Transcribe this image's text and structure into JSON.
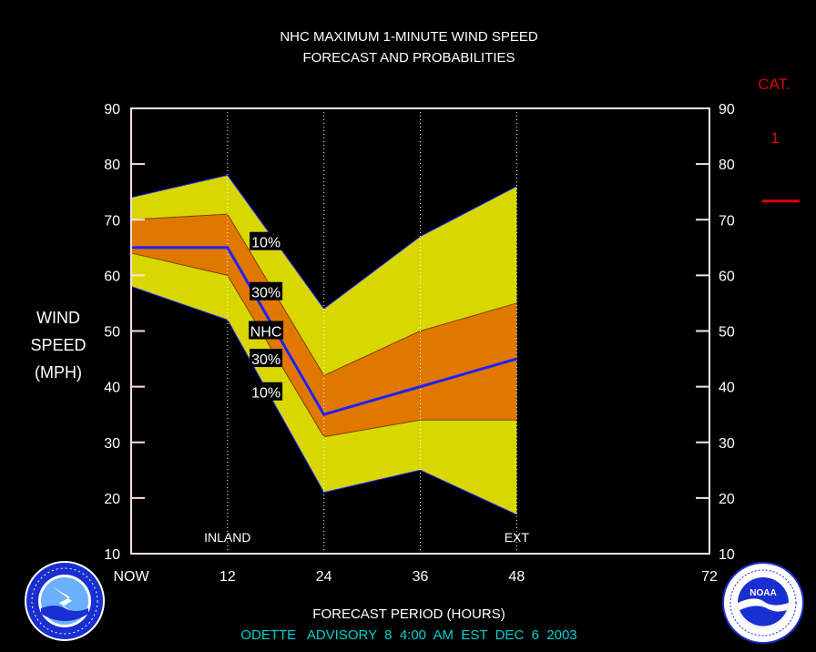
{
  "chart_data": {
    "type": "area",
    "title": "NHC MAXIMUM 1-MINUTE WIND SPEED",
    "subtitle": "FORECAST AND PROBABILITIES",
    "xlabel": "FORECAST PERIOD (HOURS)",
    "ylabel": [
      "WIND",
      "SPEED",
      "(MPH)"
    ],
    "xlim": [
      0,
      72
    ],
    "ylim": [
      10,
      90
    ],
    "yticks": [
      10,
      20,
      30,
      40,
      50,
      60,
      70,
      80,
      90
    ],
    "xticks": [
      {
        "x": 0,
        "label": "NOW"
      },
      {
        "x": 12,
        "label": "12"
      },
      {
        "x": 24,
        "label": "24"
      },
      {
        "x": 36,
        "label": "36"
      },
      {
        "x": 48,
        "label": "48"
      },
      {
        "x": 72,
        "label": "72"
      }
    ],
    "vertical_markers": [
      {
        "x": 12,
        "label": "INLAND"
      },
      {
        "x": 24,
        "label": ""
      },
      {
        "x": 36,
        "label": ""
      },
      {
        "x": 48,
        "label": "EXT"
      }
    ],
    "x": [
      0,
      12,
      24,
      36,
      48
    ],
    "series": [
      {
        "name": "10% upper",
        "values": [
          74,
          78,
          54,
          67,
          76
        ]
      },
      {
        "name": "30% upper",
        "values": [
          70,
          71,
          42,
          50,
          55
        ]
      },
      {
        "name": "NHC",
        "values": [
          65,
          65,
          35,
          40,
          45
        ]
      },
      {
        "name": "30% lower",
        "values": [
          64,
          60,
          31,
          34,
          34
        ]
      },
      {
        "name": "10% lower",
        "values": [
          58,
          52,
          21,
          25,
          17
        ]
      }
    ],
    "band_labels": [
      {
        "text": "10%",
        "x": 16,
        "y": 66
      },
      {
        "text": "30%",
        "x": 16,
        "y": 57
      },
      {
        "text": "NHC",
        "x": 16,
        "y": 50
      },
      {
        "text": "30%",
        "x": 16,
        "y": 45
      },
      {
        "text": "10%",
        "x": 16,
        "y": 39
      }
    ],
    "category": {
      "title": "CAT.",
      "value": "1",
      "threshold_mph": 74
    },
    "colors": {
      "outer_band": "#d8d800",
      "inner_band": "#e07800",
      "nhc_line": "#2020ff",
      "frame": "#ffe0e0",
      "category": "#e00000"
    }
  },
  "footer": "ODETTE   ADVISORY  8  4:00  AM  EST  DEC  6  2003",
  "logos": {
    "nws": {
      "name": "nws-logo",
      "text": "NATIONAL WEATHER SERVICE"
    },
    "noaa": {
      "name": "noaa-logo",
      "text": "NOAA",
      "ring_text": "NATIONAL OCEANIC AND ATMOSPHERIC ADMINISTRATION U.S. DEPARTMENT OF COMMERCE"
    }
  }
}
